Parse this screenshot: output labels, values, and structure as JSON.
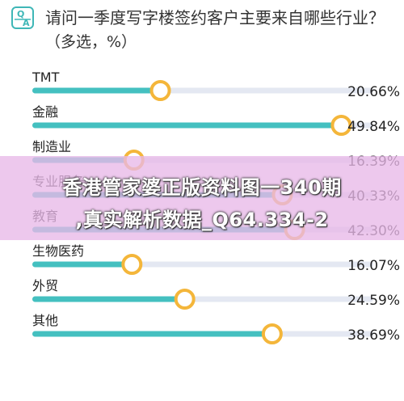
{
  "header": {
    "icon": "qa-icon",
    "icon_letters": "Q A",
    "title": "请问一季度写字楼签约客户主要来自哪些行业？",
    "subtitle": "（多选，%）"
  },
  "colors": {
    "bar_fill": "#44c0c0",
    "track": "#e4e8f2",
    "knob_ring": "#f4b63a",
    "icon": "#3fb7b7"
  },
  "chart_data": {
    "type": "bar",
    "orientation": "horizontal",
    "categories": [
      "TMT",
      "金融",
      "制造业",
      "专业服务",
      "教育",
      "生物医药",
      "外贸",
      "其他"
    ],
    "values": [
      20.66,
      49.84,
      16.39,
      40.33,
      42.3,
      16.07,
      24.59,
      38.69
    ],
    "value_labels": [
      "20.66%",
      "49.84%",
      "16.39%",
      "40.33%",
      "42.30%",
      "16.07%",
      "24.59%",
      "38.69%"
    ],
    "title": "请问一季度写字楼签约客户主要来自哪些行业？",
    "subtitle": "（多选，%）",
    "xlabel": "",
    "ylabel": "",
    "xlim": [
      0,
      55
    ],
    "grid": false,
    "legend": "none"
  },
  "overlay": {
    "line1": "香港管家婆正版资料图一340期",
    "line2": ",真实解析数据_Q64.334-2"
  }
}
